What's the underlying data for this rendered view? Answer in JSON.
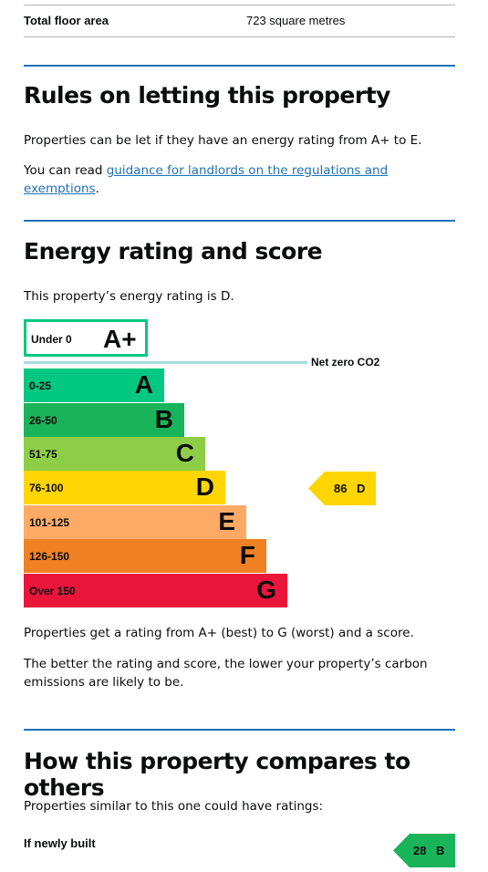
{
  "summary_row": {
    "key": "Total floor area",
    "value": "723 square metres"
  },
  "letting": {
    "heading": "Rules on letting this property",
    "para1": "Properties can be let if they have an energy rating from A+ to E.",
    "para2_prefix": "You can read ",
    "para2_link": "guidance for landlords on the regulations and exemptions",
    "para2_suffix": "."
  },
  "energy": {
    "heading": "Energy rating and score",
    "intro": "This property’s energy rating is D.",
    "aplus": {
      "range": "Under 0",
      "letter": "A+",
      "color": "#00c781"
    },
    "net_zero_label": "Net zero CO2",
    "bands": [
      {
        "range": "0-25",
        "letter": "A",
        "color": "#00c781"
      },
      {
        "range": "26-50",
        "letter": "B",
        "color": "#19b459"
      },
      {
        "range": "51-75",
        "letter": "C",
        "color": "#8dce46"
      },
      {
        "range": "76-100",
        "letter": "D",
        "color": "#ffd500"
      },
      {
        "range": "101-125",
        "letter": "E",
        "color": "#fcaa65"
      },
      {
        "range": "126-150",
        "letter": "F",
        "color": "#ef8023"
      },
      {
        "range": "Over 150",
        "letter": "G",
        "color": "#e9153b"
      }
    ],
    "current": {
      "score": "86",
      "letter": "D",
      "color": "#ffd500"
    },
    "note1": "Properties get a rating from A+ (best) to G (worst) and a score.",
    "note2": "The better the rating and score, the lower your property’s carbon emissions are likely to be."
  },
  "compare": {
    "heading": "How this property compares to others",
    "intro": "Properties similar to this one could have ratings:",
    "newly_built_label": "If newly built",
    "newly_built": {
      "score": "28",
      "letter": "B",
      "color": "#19b459"
    }
  },
  "colors": {
    "accent_blue": "#1d70b8",
    "divider": "#b1b4b6"
  }
}
